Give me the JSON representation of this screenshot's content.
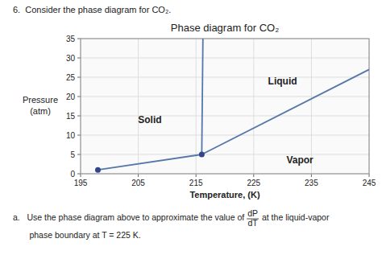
{
  "chart_data": {
    "type": "line",
    "header": "6.  Consider the phase diagram for CO₂.",
    "title": "Phase diagram for CO₂",
    "x_label": "Temperature, (K)",
    "y_label": [
      "Pressure",
      "(atm)"
    ],
    "xlim": [
      195,
      245
    ],
    "ylim": [
      0,
      35
    ],
    "xticks": [
      195,
      205,
      215,
      225,
      235,
      245
    ],
    "yticks": [
      0,
      5,
      10,
      15,
      20,
      25,
      30,
      35
    ],
    "grid": true,
    "series": [
      {
        "type": "line",
        "line_style": "solid",
        "color": "#5577aa",
        "x": [
          198,
          216
        ],
        "values": [
          1,
          5
        ]
      },
      {
        "type": "line",
        "line_style": "solid",
        "color": "#5577aa",
        "x": [
          216,
          216.2
        ],
        "values": [
          5,
          35
        ]
      },
      {
        "type": "line",
        "line_style": "solid",
        "color": "#5577aa",
        "x": [
          216,
          245
        ],
        "values": [
          5,
          27
        ]
      },
      {
        "type": "scatter",
        "marker": "circle",
        "color": "#334488",
        "x": [
          216,
          198
        ],
        "values": [
          5,
          1
        ]
      }
    ],
    "annotations": [
      {
        "text": "Solid",
        "x": 207,
        "y": 14
      },
      {
        "text": "Liquid",
        "x": 230,
        "y": 24
      },
      {
        "text": "Vapor",
        "x": 233,
        "y": 3.5
      }
    ],
    "question": {
      "text_a": "a.   Use the phase diagram above to approximate the value of",
      "fraction": {
        "numerator": "dP",
        "denominator": "dT"
      },
      "text_b": " at the liquid-vapor",
      "text_c": "       phase boundary at T = 225 K."
    }
  }
}
